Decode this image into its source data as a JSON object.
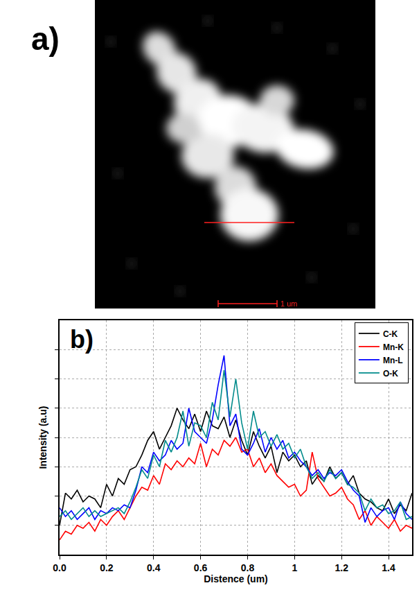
{
  "image": {
    "label": "a)",
    "scale_bar_label": "1 um"
  },
  "chart_data": {
    "type": "line",
    "annotations": [
      "b)"
    ],
    "x_label": "Distence (um)",
    "y_label": "Intensity (a.u)",
    "x": [
      0,
      0.025,
      0.05,
      0.075,
      0.1,
      0.125,
      0.15,
      0.175,
      0.2,
      0.225,
      0.25,
      0.275,
      0.3,
      0.325,
      0.35,
      0.375,
      0.4,
      0.425,
      0.45,
      0.475,
      0.5,
      0.525,
      0.55,
      0.575,
      0.6,
      0.625,
      0.65,
      0.675,
      0.7,
      0.725,
      0.75,
      0.775,
      0.8,
      0.825,
      0.85,
      0.875,
      0.9,
      0.925,
      0.95,
      0.975,
      1.0,
      1.025,
      1.05,
      1.075,
      1.1,
      1.125,
      1.15,
      1.175,
      1.2,
      1.225,
      1.25,
      1.275,
      1.3,
      1.325,
      1.35,
      1.375,
      1.4,
      1.425,
      1.45,
      1.475,
      1.5
    ],
    "series": [
      {
        "name": "C-K",
        "color": "#000000",
        "values": [
          1.0,
          2.1,
          1.9,
          2.2,
          1.8,
          2.0,
          1.9,
          1.6,
          2.4,
          2.0,
          2.6,
          2.4,
          2.9,
          3.0,
          3.4,
          3.9,
          4.2,
          3.6,
          4.0,
          4.4,
          5.0,
          4.6,
          4.3,
          4.8,
          4.2,
          4.9,
          4.4,
          4.3,
          4.7,
          4.0,
          4.6,
          3.9,
          3.4,
          4.2,
          3.7,
          3.3,
          3.7,
          2.8,
          3.5,
          3.2,
          3.4,
          3.0,
          3.2,
          2.4,
          2.7,
          2.5,
          3.0,
          2.6,
          2.8,
          2.4,
          2.7,
          2.1,
          1.9,
          1.8,
          1.6,
          1.5,
          1.9,
          1.4,
          1.7,
          1.5,
          2.1
        ]
      },
      {
        "name": "Mn-K",
        "color": "#ff0000",
        "values": [
          0.5,
          0.8,
          0.7,
          1.0,
          0.9,
          1.1,
          0.8,
          1.2,
          1.0,
          1.3,
          1.5,
          1.2,
          1.6,
          2.0,
          2.3,
          2.2,
          2.7,
          2.4,
          3.1,
          2.9,
          3.2,
          3.0,
          3.3,
          3.1,
          3.8,
          3.0,
          3.6,
          3.4,
          3.9,
          3.7,
          4.0,
          3.5,
          3.6,
          3.0,
          3.3,
          2.8,
          3.1,
          2.7,
          2.5,
          2.3,
          2.4,
          2.0,
          2.2,
          3.5,
          2.6,
          2.3,
          2.0,
          2.1,
          2.3,
          1.9,
          1.7,
          1.2,
          1.5,
          1.0,
          1.3,
          1.1,
          0.9,
          1.2,
          0.8,
          1.0,
          0.9
        ]
      },
      {
        "name": "Mn-L",
        "color": "#0000ff",
        "values": [
          1.6,
          1.3,
          1.5,
          1.2,
          1.4,
          1.6,
          1.2,
          1.5,
          1.4,
          1.6,
          1.5,
          1.7,
          1.6,
          2.2,
          3.0,
          2.8,
          3.5,
          3.2,
          3.4,
          3.9,
          3.6,
          3.8,
          5.0,
          4.2,
          4.0,
          3.8,
          4.6,
          5.8,
          6.8,
          4.4,
          4.8,
          3.6,
          3.4,
          3.8,
          4.3,
          3.5,
          4.0,
          3.6,
          3.9,
          3.3,
          3.5,
          3.2,
          3.0,
          2.7,
          2.9,
          2.6,
          2.8,
          2.7,
          2.9,
          2.5,
          2.2,
          2.0,
          1.1,
          1.6,
          1.3,
          1.5,
          1.6,
          1.2,
          1.8,
          1.4,
          1.2
        ]
      },
      {
        "name": "O-K",
        "color": "#008b8b",
        "values": [
          1.3,
          1.5,
          1.2,
          1.4,
          1.6,
          1.3,
          1.5,
          1.3,
          1.4,
          1.5,
          1.6,
          1.4,
          1.8,
          2.3,
          2.9,
          2.6,
          3.4,
          3.0,
          3.9,
          3.5,
          4.0,
          4.9,
          3.7,
          4.5,
          4.4,
          4.0,
          5.2,
          4.6,
          6.3,
          4.7,
          6.0,
          4.5,
          3.6,
          4.9,
          4.0,
          4.2,
          3.7,
          4.1,
          3.6,
          3.8,
          3.3,
          3.6,
          3.0,
          2.6,
          2.8,
          2.5,
          2.9,
          2.6,
          2.8,
          2.4,
          2.3,
          2.1,
          1.5,
          1.9,
          1.6,
          1.7,
          1.4,
          1.5,
          1.8,
          1.2,
          1.3
        ]
      }
    ],
    "xlim": [
      0,
      1.5
    ],
    "xticks": [
      {
        "value": 0,
        "label": "0.0"
      },
      0.2,
      0.4,
      0.6,
      0.8,
      1.0,
      1.2,
      1.4
    ],
    "ylim": [
      0,
      8
    ],
    "yticks": [
      1,
      2,
      3,
      4,
      5,
      6,
      7
    ],
    "tick_labels": "x",
    "grid": true,
    "legend": "top right"
  }
}
